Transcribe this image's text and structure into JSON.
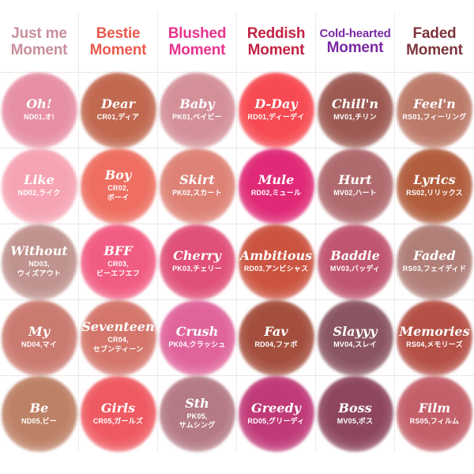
{
  "header": {
    "columns": [
      {
        "line1": "Just me",
        "line2": "Moment",
        "color": "#c98f9b"
      },
      {
        "line1": "Bestie",
        "line2": "Moment",
        "color": "#eb5a4e"
      },
      {
        "line1": "Blushed",
        "line2": "Moment",
        "color": "#e8338e"
      },
      {
        "line1": "Reddish",
        "line2": "Moment",
        "color": "#c22344"
      },
      {
        "line1": "Cold-hearted",
        "line2": "Moment",
        "color": "#7b2aa3"
      },
      {
        "line1": "Faded",
        "line2": "Moment",
        "color": "#7d333c"
      }
    ]
  },
  "swatches": {
    "rows": [
      [
        {
          "name": "Oh!",
          "code": "ND01,オ!",
          "color": "#e78fa4"
        },
        {
          "name": "Dear",
          "code": "CR01,ディア",
          "color": "#c16850"
        },
        {
          "name": "Baby",
          "code": "PK01,ベイビー",
          "color": "#d49099"
        },
        {
          "name": "D-Day",
          "code": "RD01,ディーデイ",
          "color": "#f74a52"
        },
        {
          "name": "Chill'n",
          "code": "MV01,チリン",
          "color": "#9d5a53"
        },
        {
          "name": "Feel'n",
          "code": "RS01,フィーリング",
          "color": "#bc7a69"
        }
      ],
      [
        {
          "name": "Like",
          "code": "ND02,ライク",
          "color": "#f6a3b3"
        },
        {
          "name": "Boy",
          "code": "CR02,\nボーイ",
          "color": "#ee6e61"
        },
        {
          "name": "Skirt",
          "code": "PK02,スカート",
          "color": "#de8276"
        },
        {
          "name": "Mule",
          "code": "RD02,ミュール",
          "color": "#e02a77"
        },
        {
          "name": "Hurt",
          "code": "MV02,ハート",
          "color": "#b06a6e"
        },
        {
          "name": "Lyrics",
          "code": "RS02,リリックス",
          "color": "#b25e3e"
        }
      ],
      [
        {
          "name": "Without",
          "code": "ND03,\nウィズアウト",
          "color": "#c0938e"
        },
        {
          "name": "BFF",
          "code": "CR03,\nビーエフエフ",
          "color": "#f15c82"
        },
        {
          "name": "Cherry",
          "code": "PK03,チェリー",
          "color": "#e05078"
        },
        {
          "name": "Ambitious",
          "code": "RD03,アンビシャス",
          "color": "#cb5440"
        },
        {
          "name": "Baddie",
          "code": "MV03,バッディ",
          "color": "#c05570"
        },
        {
          "name": "Faded",
          "code": "RS03,フェイディド",
          "color": "#b07f78"
        }
      ],
      [
        {
          "name": "My",
          "code": "ND04,マイ",
          "color": "#cb7a70"
        },
        {
          "name": "Seventeen",
          "code": "CR04,\nセブンティーン",
          "color": "#d4766b"
        },
        {
          "name": "Crush",
          "code": "PK04,クラッシュ",
          "color": "#e0649b"
        },
        {
          "name": "Fav",
          "code": "RD04,ファボ",
          "color": "#a44f3e"
        },
        {
          "name": "Slayyy",
          "code": "MV04,スレイ",
          "color": "#8a5561"
        },
        {
          "name": "Memories",
          "code": "RS04,メモリーズ",
          "color": "#b55046"
        }
      ],
      [
        {
          "name": "Be",
          "code": "ND05,ビー",
          "color": "#bd8166"
        },
        {
          "name": "Girls",
          "code": "CR05,ガールズ",
          "color": "#ef5a62"
        },
        {
          "name": "Sth",
          "code": "PK05,\nサムシング",
          "color": "#b47a85"
        },
        {
          "name": "Greedy",
          "code": "RD05,グリーディ",
          "color": "#c03a78"
        },
        {
          "name": "Boss",
          "code": "MV05,ボス",
          "color": "#8e4660"
        },
        {
          "name": "Film",
          "code": "RS05,フィルム",
          "color": "#c4606a"
        }
      ]
    ]
  }
}
